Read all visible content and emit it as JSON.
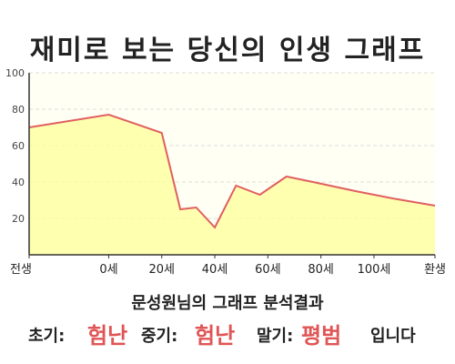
{
  "title": "재미로 보는 당신의 인생 그래프",
  "chart_data": {
    "type": "area",
    "title": "재미로 보는 당신의 인생 그래프",
    "x_tick_labels": [
      "전생",
      "0세",
      "20세",
      "40세",
      "60세",
      "80세",
      "100세",
      "환생"
    ],
    "y_ticks": [
      20,
      40,
      60,
      80,
      100
    ],
    "ylim": [
      0,
      100
    ],
    "grid": true,
    "series": [
      {
        "x": [
          -30,
          0,
          20,
          27,
          33,
          40,
          48,
          57,
          67,
          77,
          93,
          107,
          123
        ],
        "y": [
          70,
          77,
          67,
          25,
          26,
          15,
          38,
          33,
          43,
          40,
          35,
          31,
          27
        ]
      }
    ]
  },
  "colors": {
    "line": "#e06060",
    "fill": "#ffff99",
    "grid": "#dddddd",
    "accent": "#e05555"
  },
  "analysis": {
    "heading": "문성원님의 그래프 분석결과",
    "early_label": "초기:",
    "early_value": "험난",
    "middle_label": "중기:",
    "middle_value": "험난",
    "late_label": "말기:",
    "late_value": "평범",
    "suffix": "입니다"
  }
}
